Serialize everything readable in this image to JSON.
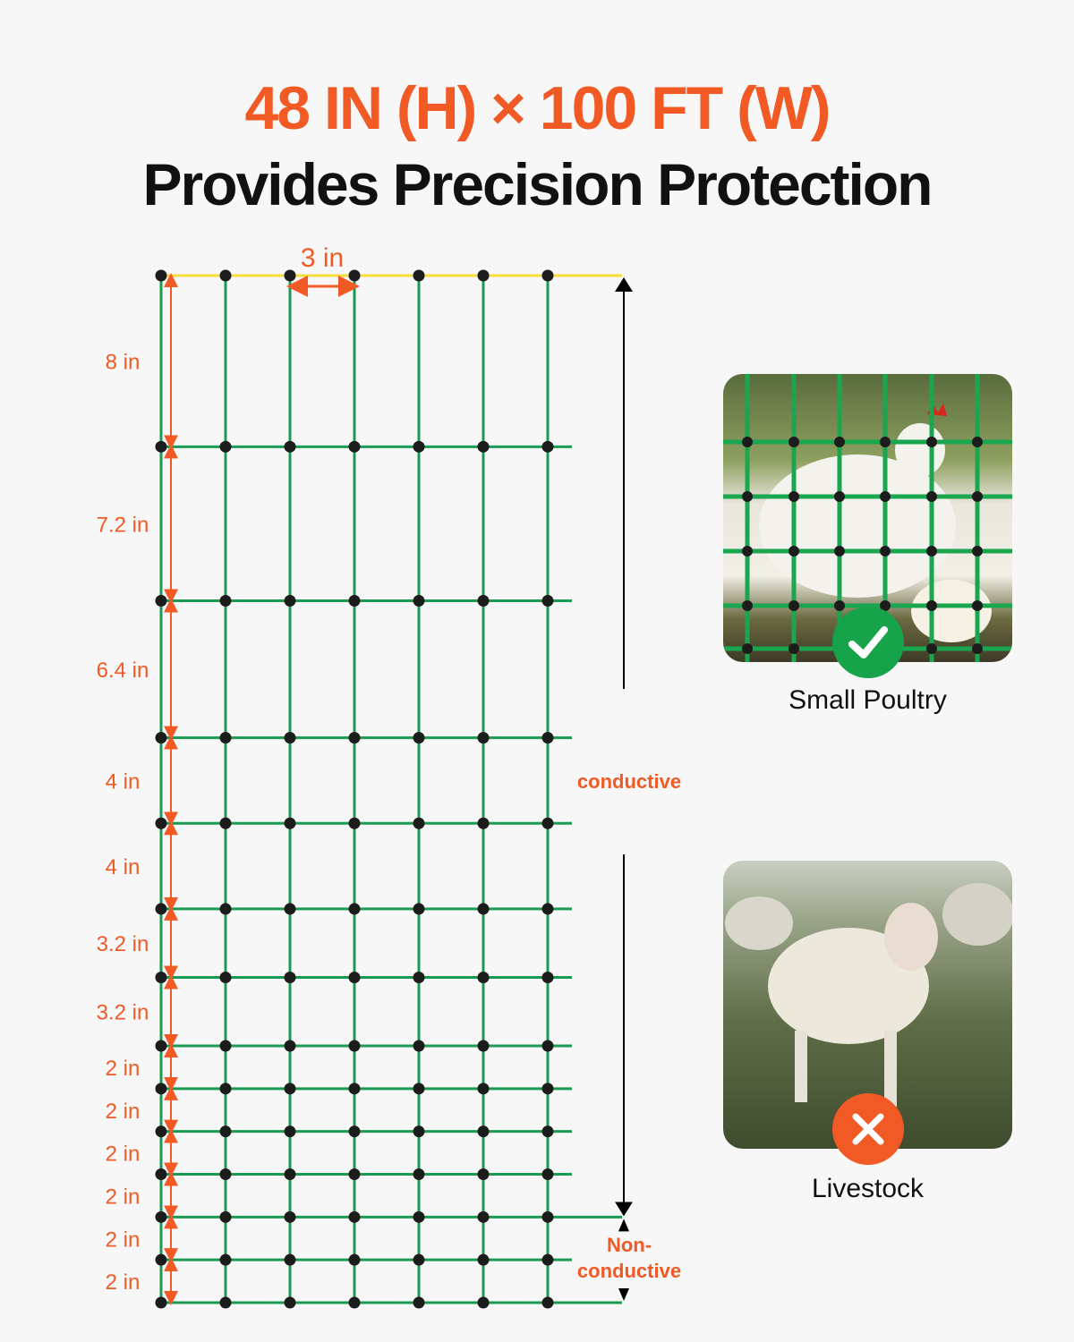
{
  "header": {
    "title": "48 IN (H) × 100 FT (W)",
    "subtitle": "Provides Precision Protection"
  },
  "diagram": {
    "column_spacing_label": "3 in",
    "column_spacing_in": 3,
    "column_count": 7,
    "row_spacings_in": [
      8,
      7.2,
      6.4,
      4,
      4,
      3.2,
      3.2,
      2,
      2,
      2,
      2,
      2,
      2
    ],
    "row_spacing_labels": [
      "8 in",
      "7.2 in",
      "6.4 in",
      "4 in",
      "4 in",
      "3.2 in",
      "3.2 in",
      "2 in",
      "2 in",
      "2 in",
      "2 in",
      "2 in",
      "2 in"
    ],
    "conductive_label": "conductive",
    "nonconductive_label_line1": "Non-",
    "nonconductive_label_line2": "conductive",
    "colors": {
      "wire": "#1a9a52",
      "top_wire": "#f5dd3a",
      "node": "#1c1c1c",
      "dimension": "#f15a24",
      "accent": "#f15a24"
    }
  },
  "cards": [
    {
      "caption": "Small Poultry",
      "badge_icon": "check-icon",
      "badge_color": "#17a34a"
    },
    {
      "caption": "Livestock",
      "badge_icon": "x-icon",
      "badge_color": "#f15a24"
    }
  ]
}
